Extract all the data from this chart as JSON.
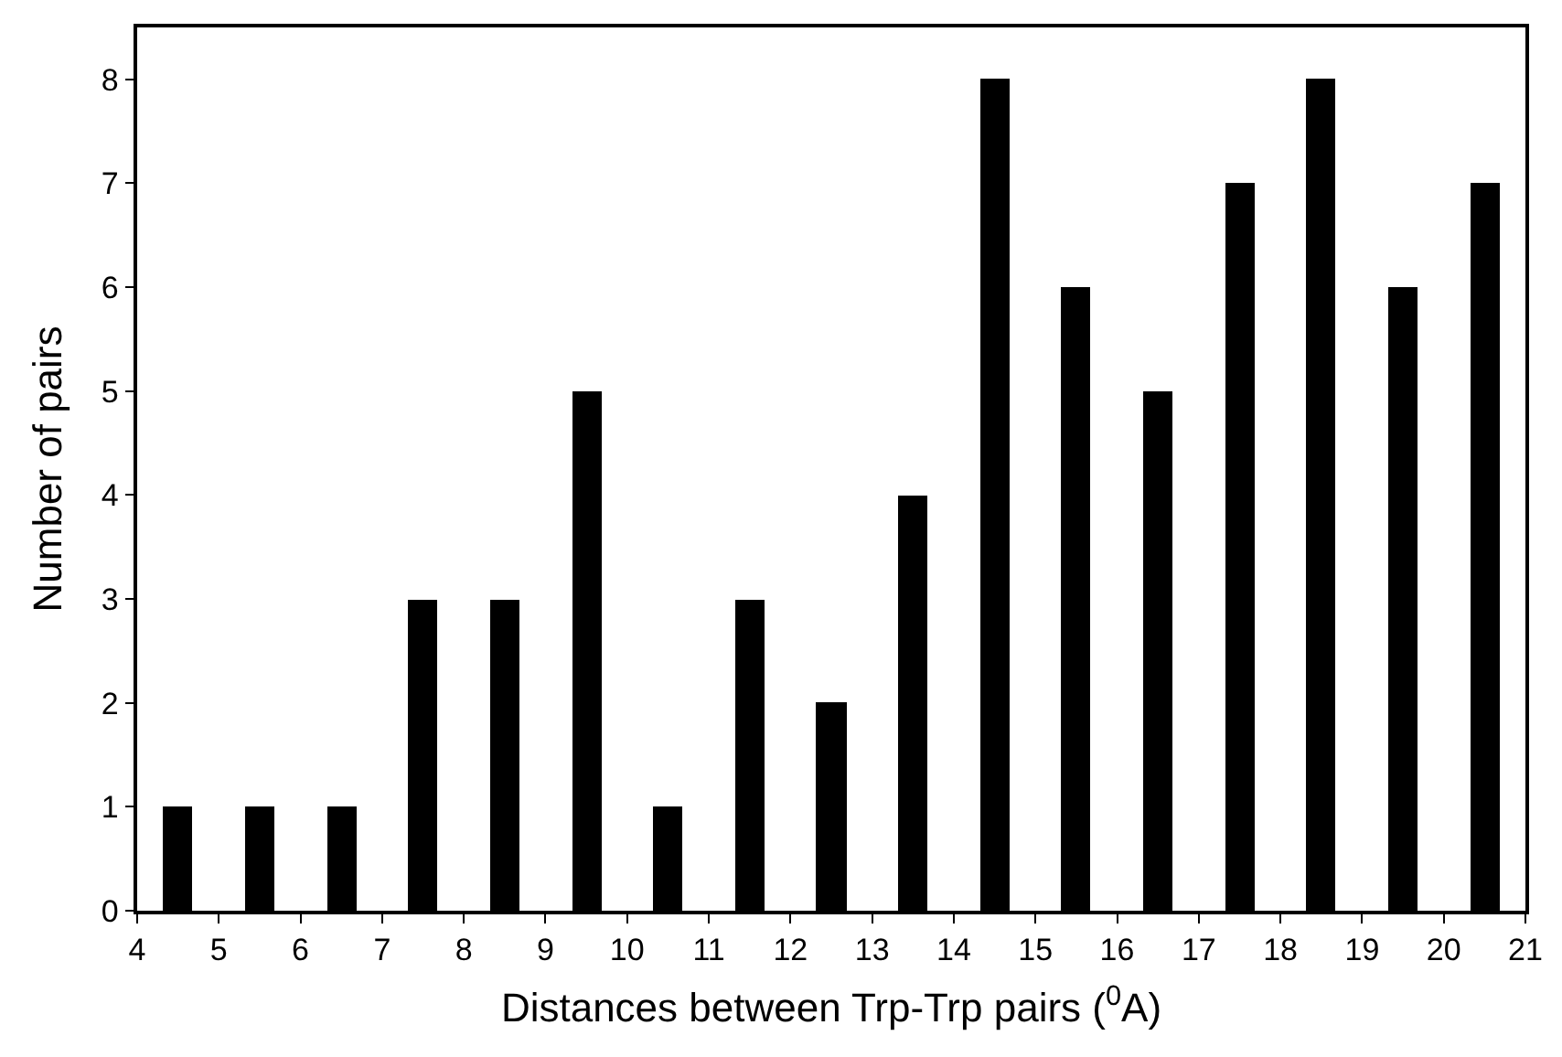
{
  "chart_data": {
    "type": "bar",
    "xlabel": "Distances between Trp-Trp pairs ($^{0}$A)",
    "ylabel": "Number of pairs",
    "x": [
      4.5,
      5.5,
      6.5,
      7.5,
      8.5,
      9.5,
      10.5,
      11.5,
      12.5,
      13.5,
      14.5,
      15.5,
      16.5,
      17.5,
      18.5,
      19.5,
      20.5
    ],
    "values": [
      1,
      1,
      1,
      3,
      3,
      5,
      1,
      3,
      2,
      4,
      8,
      6,
      5,
      7,
      8,
      6,
      7
    ],
    "color": "#000000",
    "xlim": [
      4,
      21
    ],
    "xticks": [
      4,
      5,
      6,
      7,
      8,
      9,
      10,
      11,
      12,
      13,
      14,
      15,
      16,
      17,
      18,
      19,
      20,
      21
    ],
    "ylim": [
      0,
      8.5
    ],
    "yticks": [
      0,
      1,
      2,
      3,
      4,
      5,
      6,
      7,
      8
    ]
  }
}
